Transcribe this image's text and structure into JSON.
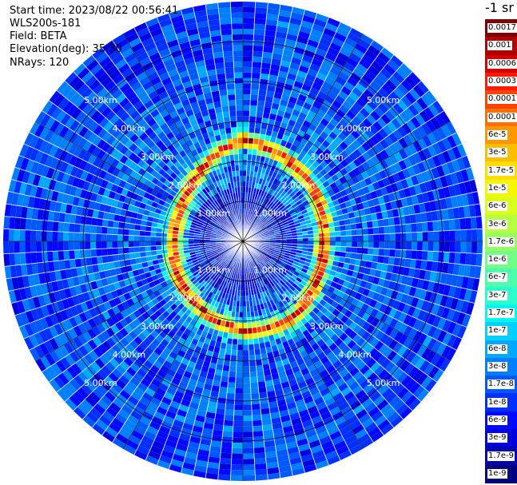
{
  "header": {
    "start_time": "Start time: 2023/08/22 00:56:41",
    "instrument": "WLS200s-181",
    "field": "Field: BETA",
    "elevation": "Elevation(deg): 35.30",
    "nrays": "NRays: 120"
  },
  "colorbar": {
    "title": "-1 sr",
    "labels": [
      "0.0017",
      "0.001",
      "0.0006",
      "0.0003",
      "0.00017",
      "0.0001",
      "6e-5",
      "3e-5",
      "1.7e-5",
      "1e-5",
      "6e-6",
      "3e-6",
      "1.7e-6",
      "1e-6",
      "6e-7",
      "3e-7",
      "1.7e-7",
      "1e-7",
      "6e-8",
      "3e-8",
      "1.7e-8",
      "1e-8",
      "6e-9",
      "3e-9",
      "1.7e-9",
      "1e-9"
    ],
    "colors": [
      "#7f0000",
      "#b00000",
      "#d40000",
      "#ff1a00",
      "#ff4400",
      "#ff7000",
      "#ff9800",
      "#ffbd00",
      "#ffdd00",
      "#f6f600",
      "#d9ff1e",
      "#b6ff41",
      "#93ff64",
      "#70ff87",
      "#4dffaa",
      "#2affcd",
      "#07f4ef",
      "#00d0ff",
      "#00a8ff",
      "#0080ff",
      "#0058ff",
      "#0030ff",
      "#0008ff",
      "#0000de",
      "#0000b0",
      "#000080"
    ]
  },
  "chart_data": {
    "type": "ppi-polar-scan",
    "field": "BETA",
    "units": "-1 sr",
    "scale": "log",
    "vmin": 1e-09,
    "vmax": 0.0017,
    "nrays": 120,
    "max_range_km": 6,
    "range_rings_km": [
      1,
      2,
      3,
      4,
      5
    ],
    "ring_labels": [
      "1.00km",
      "2.00km",
      "3.00km",
      "4.00km",
      "5.00km"
    ],
    "label_directions_deg": [
      -45,
      45,
      135,
      225
    ],
    "spokes_deg": [
      0,
      30,
      60,
      90,
      120,
      150
    ],
    "cloud_ring": {
      "radius_km_by_azimuth": [
        [
          0,
          2.55
        ],
        [
          30,
          2.3
        ],
        [
          60,
          2.15
        ],
        [
          90,
          2.0
        ],
        [
          120,
          2.1
        ],
        [
          150,
          2.3
        ],
        [
          180,
          2.25
        ],
        [
          210,
          2.0
        ],
        [
          240,
          1.85
        ],
        [
          270,
          1.7
        ],
        [
          300,
          1.75
        ],
        [
          330,
          2.05
        ],
        [
          360,
          2.55
        ]
      ],
      "peak_beta": 0.0003,
      "thickness_km": 0.3
    },
    "background_beta": 3e-08
  }
}
